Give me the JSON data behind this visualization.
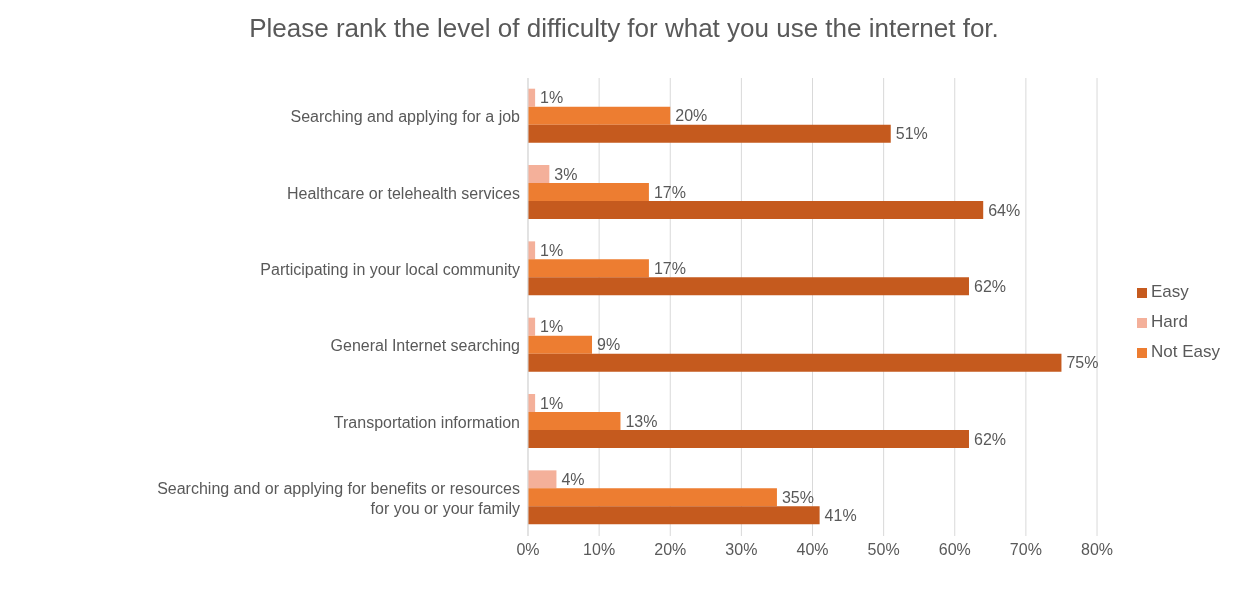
{
  "chart_data": {
    "type": "bar",
    "orientation": "horizontal",
    "title": "Please rank the level of difficulty for what you use the internet for.",
    "categories": [
      "Searching and applying for a job",
      "Healthcare or telehealth services",
      "Participating in your local community",
      "General Internet searching",
      "Transportation information",
      "Searching and or applying for benefits or resources for you or your family"
    ],
    "series": [
      {
        "name": "Hard",
        "color": "#f4b09a",
        "values": [
          1,
          3,
          1,
          1,
          1,
          4
        ],
        "value_labels": [
          "1%",
          "3%",
          "1%",
          "1%",
          "1%",
          "4%"
        ]
      },
      {
        "name": "Not Easy",
        "color": "#ed7d31",
        "values": [
          20,
          17,
          17,
          9,
          13,
          35
        ],
        "value_labels": [
          "20%",
          "17%",
          "17%",
          "9%",
          "13%",
          "35%"
        ]
      },
      {
        "name": "Easy",
        "color": "#c55a1e",
        "values": [
          51,
          64,
          62,
          75,
          62,
          41
        ],
        "value_labels": [
          "51%",
          "64%",
          "62%",
          "75%",
          "62%",
          "41%"
        ]
      }
    ],
    "xlim": [
      0,
      80
    ],
    "xticks": [
      {
        "value": 0,
        "label": "0%"
      },
      {
        "value": 10,
        "label": "10%"
      },
      {
        "value": 20,
        "label": "20%"
      },
      {
        "value": 30,
        "label": "30%"
      },
      {
        "value": 40,
        "label": "40%"
      },
      {
        "value": 50,
        "label": "50%"
      },
      {
        "value": 60,
        "label": "60%"
      },
      {
        "value": 70,
        "label": "70%"
      },
      {
        "value": 80,
        "label": "80%"
      }
    ],
    "grid": "x",
    "legend": "right"
  }
}
